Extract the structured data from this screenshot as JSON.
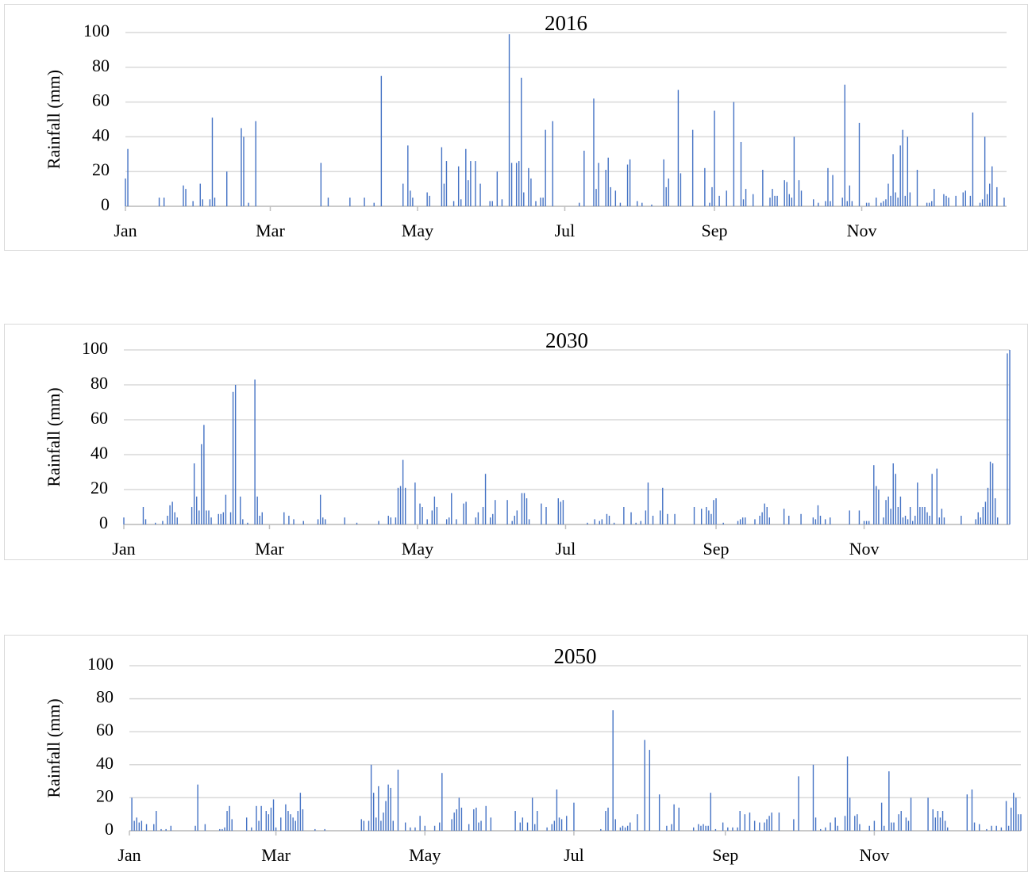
{
  "chart_data": [
    {
      "type": "bar",
      "title": "2016",
      "y_label": "Rainfall (mm)",
      "color": "#4472c4",
      "grid": true,
      "xlim": [
        1,
        366
      ],
      "xticks": [
        {
          "value": 1,
          "label": "Jan"
        },
        {
          "value": 61,
          "label": "Mar"
        },
        {
          "value": 122,
          "label": "May"
        },
        {
          "value": 183,
          "label": "Jul"
        },
        {
          "value": 245,
          "label": "Sep"
        },
        {
          "value": 306,
          "label": "Nov"
        }
      ],
      "ylim": [
        0,
        100
      ],
      "yticks": [
        0,
        20,
        40,
        60,
        80,
        100
      ],
      "x": [
        1,
        2,
        15,
        17,
        25,
        26,
        29,
        32,
        33,
        36,
        37,
        38,
        43,
        49,
        50,
        52,
        55,
        82,
        85,
        94,
        100,
        104,
        107,
        116,
        118,
        119,
        120,
        126,
        127,
        132,
        133,
        134,
        137,
        139,
        140,
        142,
        143,
        144,
        146,
        148,
        152,
        153,
        155,
        157,
        160,
        161,
        163,
        164,
        165,
        166,
        168,
        169,
        171,
        173,
        174,
        175,
        178,
        189,
        191,
        195,
        196,
        197,
        200,
        201,
        202,
        204,
        206,
        209,
        210,
        213,
        215,
        219,
        224,
        225,
        226,
        230,
        231,
        236,
        241,
        243,
        244,
        245,
        247,
        250,
        253,
        256,
        257,
        258,
        261,
        265,
        268,
        269,
        270,
        271,
        274,
        275,
        276,
        277,
        278,
        280,
        281,
        286,
        288,
        291,
        292,
        293,
        294,
        298,
        299,
        300,
        301,
        302,
        305,
        308,
        309,
        312,
        314,
        315,
        316,
        317,
        318,
        319,
        320,
        321,
        322,
        323,
        324,
        325,
        326,
        329,
        333,
        334,
        335,
        336,
        340,
        341,
        342,
        345,
        348,
        349,
        351,
        352,
        355,
        356,
        357,
        358,
        359,
        360,
        362,
        365
      ],
      "values": [
        16,
        33,
        5,
        5,
        12,
        10,
        3,
        13,
        4,
        4,
        51,
        5,
        20,
        45,
        40,
        2,
        49,
        25,
        5,
        5,
        5,
        2,
        75,
        13,
        35,
        9,
        5,
        8,
        6,
        34,
        13,
        26,
        3,
        23,
        4,
        33,
        15,
        26,
        26,
        13,
        3,
        3,
        20,
        4,
        99,
        25,
        25,
        26,
        74,
        8,
        22,
        16,
        3,
        5,
        5,
        44,
        49,
        2,
        32,
        62,
        10,
        25,
        21,
        28,
        11,
        9,
        2,
        24,
        27,
        3,
        2,
        1,
        27,
        11,
        16,
        67,
        19,
        44,
        22,
        2,
        11,
        55,
        6,
        9,
        60,
        37,
        4,
        10,
        7,
        21,
        5,
        10,
        6,
        6,
        15,
        14,
        7,
        5,
        40,
        15,
        9,
        4,
        2,
        3,
        22,
        3,
        18,
        5,
        70,
        3,
        12,
        3,
        48,
        2,
        2,
        5,
        2,
        3,
        4,
        13,
        6,
        30,
        8,
        5,
        35,
        44,
        6,
        40,
        8,
        21,
        2,
        2,
        3,
        10,
        7,
        6,
        5,
        6,
        8,
        9,
        6,
        54,
        2,
        4,
        40,
        7,
        13,
        23,
        11,
        5
      ]
    },
    {
      "type": "bar",
      "title": "2030",
      "y_label": "Rainfall (mm)",
      "color": "#4472c4",
      "grid": true,
      "xlim": [
        1,
        366
      ],
      "xticks": [
        {
          "value": 1,
          "label": "Jan"
        },
        {
          "value": 61,
          "label": "Mar"
        },
        {
          "value": 122,
          "label": "May"
        },
        {
          "value": 183,
          "label": "Jul"
        },
        {
          "value": 245,
          "label": "Sep"
        },
        {
          "value": 306,
          "label": "Nov"
        }
      ],
      "ylim": [
        0,
        100
      ],
      "yticks": [
        0,
        20,
        40,
        60,
        80,
        100
      ],
      "x": [
        1,
        9,
        10,
        14,
        17,
        19,
        20,
        21,
        22,
        23,
        29,
        30,
        31,
        32,
        33,
        34,
        35,
        36,
        37,
        40,
        41,
        42,
        43,
        45,
        46,
        47,
        49,
        50,
        52,
        55,
        56,
        57,
        58,
        67,
        69,
        71,
        75,
        81,
        82,
        83,
        84,
        92,
        97,
        106,
        110,
        111,
        113,
        114,
        115,
        116,
        117,
        121,
        123,
        124,
        126,
        128,
        129,
        130,
        134,
        135,
        136,
        138,
        141,
        142,
        146,
        147,
        149,
        150,
        152,
        153,
        154,
        159,
        161,
        162,
        163,
        165,
        166,
        167,
        168,
        173,
        175,
        180,
        181,
        182,
        192,
        195,
        197,
        198,
        200,
        201,
        203,
        207,
        210,
        212,
        214,
        216,
        217,
        219,
        222,
        223,
        225,
        228,
        236,
        239,
        241,
        242,
        243,
        244,
        245,
        248,
        254,
        255,
        256,
        257,
        261,
        263,
        264,
        265,
        266,
        267,
        273,
        275,
        280,
        285,
        286,
        287,
        288,
        290,
        292,
        300,
        304,
        306,
        307,
        308,
        310,
        311,
        312,
        314,
        315,
        316,
        317,
        318,
        319,
        320,
        321,
        322,
        323,
        324,
        325,
        326,
        327,
        328,
        329,
        330,
        331,
        332,
        333,
        334,
        336,
        337,
        338,
        339,
        346,
        352,
        353,
        354,
        355,
        356,
        357,
        358,
        359,
        360,
        361,
        365,
        366
      ],
      "values": [
        4,
        10,
        3,
        1,
        2,
        5,
        11,
        13,
        7,
        4,
        10,
        35,
        16,
        8,
        46,
        57,
        8,
        8,
        4,
        6,
        6,
        7,
        17,
        7,
        76,
        80,
        16,
        3,
        1,
        83,
        16,
        5,
        7,
        7,
        5,
        3,
        2,
        3,
        17,
        4,
        3,
        4,
        1,
        2,
        5,
        4,
        4,
        21,
        22,
        37,
        21,
        24,
        12,
        10,
        3,
        8,
        16,
        10,
        3,
        4,
        18,
        3,
        12,
        13,
        4,
        7,
        10,
        29,
        4,
        6,
        14,
        14,
        2,
        5,
        8,
        18,
        18,
        15,
        3,
        12,
        10,
        15,
        13,
        14,
        1,
        3,
        2,
        3,
        6,
        5,
        1,
        10,
        7,
        1,
        2,
        8,
        24,
        5,
        8,
        21,
        6,
        6,
        10,
        9,
        10,
        8,
        6,
        14,
        15,
        1,
        2,
        3,
        4,
        4,
        3,
        5,
        7,
        12,
        10,
        4,
        9,
        5,
        6,
        4,
        3,
        11,
        5,
        3,
        4,
        8,
        8,
        2,
        2,
        2,
        34,
        22,
        20,
        4,
        14,
        16,
        9,
        35,
        29,
        10,
        16,
        4,
        5,
        3,
        10,
        2,
        5,
        24,
        10,
        10,
        10,
        7,
        5,
        29,
        32,
        4,
        9,
        4,
        5,
        3,
        7,
        4,
        10,
        13,
        21,
        36,
        35,
        15,
        4,
        98,
        100
      ]
    },
    {
      "type": "bar",
      "title": "2050",
      "y_label": "Rainfall (mm)",
      "color": "#4472c4",
      "grid": true,
      "xlim": [
        1,
        366
      ],
      "xticks": [
        {
          "value": 1,
          "label": "Jan"
        },
        {
          "value": 61,
          "label": "Mar"
        },
        {
          "value": 122,
          "label": "May"
        },
        {
          "value": 183,
          "label": "Jul"
        },
        {
          "value": 245,
          "label": "Sep"
        },
        {
          "value": 306,
          "label": "Nov"
        }
      ],
      "ylim": [
        0,
        100
      ],
      "yticks": [
        0,
        20,
        40,
        60,
        80,
        100
      ],
      "x": [
        2,
        3,
        4,
        5,
        6,
        8,
        11,
        12,
        14,
        16,
        18,
        28,
        29,
        32,
        38,
        39,
        40,
        41,
        42,
        43,
        49,
        51,
        53,
        54,
        55,
        57,
        58,
        59,
        60,
        61,
        63,
        65,
        66,
        67,
        68,
        69,
        70,
        71,
        72,
        77,
        81,
        96,
        97,
        99,
        100,
        101,
        102,
        103,
        104,
        105,
        106,
        107,
        108,
        109,
        111,
        114,
        116,
        118,
        120,
        122,
        126,
        128,
        129,
        133,
        134,
        135,
        136,
        137,
        140,
        142,
        143,
        144,
        145,
        147,
        149,
        159,
        161,
        162,
        164,
        166,
        167,
        168,
        172,
        174,
        175,
        176,
        177,
        178,
        180,
        183,
        194,
        196,
        197,
        199,
        200,
        202,
        203,
        204,
        205,
        206,
        209,
        212,
        214,
        218,
        221,
        223,
        224,
        226,
        232,
        234,
        235,
        236,
        237,
        238,
        239,
        241,
        244,
        246,
        248,
        250,
        251,
        253,
        255,
        257,
        259,
        261,
        262,
        263,
        264,
        267,
        273,
        275,
        281,
        282,
        284,
        286,
        288,
        290,
        291,
        294,
        295,
        296,
        298,
        299,
        300,
        304,
        306,
        309,
        310,
        312,
        313,
        314,
        316,
        317,
        319,
        320,
        321,
        328,
        330,
        331,
        332,
        333,
        334,
        335,
        336,
        344,
        346,
        347,
        349,
        352,
        354,
        356,
        358,
        360,
        361,
        362,
        363,
        364,
        365,
        366
      ],
      "values": [
        20,
        6,
        8,
        5,
        6,
        4,
        4,
        12,
        1,
        1,
        3,
        3,
        28,
        4,
        1,
        1,
        2,
        12,
        15,
        7,
        8,
        2,
        15,
        6,
        15,
        12,
        10,
        14,
        19,
        2,
        8,
        16,
        12,
        10,
        8,
        6,
        12,
        23,
        13,
        1,
        1,
        7,
        6,
        6,
        40,
        23,
        8,
        27,
        6,
        11,
        18,
        28,
        26,
        6,
        37,
        5,
        2,
        2,
        9,
        3,
        3,
        5,
        35,
        7,
        11,
        13,
        20,
        14,
        4,
        13,
        14,
        5,
        6,
        15,
        8,
        12,
        5,
        8,
        5,
        20,
        4,
        12,
        2,
        4,
        6,
        25,
        8,
        7,
        9,
        17,
        1,
        12,
        14,
        73,
        7,
        2,
        3,
        2,
        3,
        5,
        10,
        55,
        49,
        22,
        3,
        4,
        16,
        14,
        2,
        4,
        3,
        4,
        3,
        3,
        23,
        1,
        5,
        2,
        2,
        2,
        12,
        10,
        11,
        6,
        5,
        5,
        7,
        9,
        11,
        11,
        7,
        33,
        40,
        8,
        1,
        2,
        5,
        8,
        3,
        9,
        45,
        20,
        9,
        10,
        4,
        3,
        6,
        17,
        3,
        36,
        5,
        5,
        10,
        12,
        8,
        6,
        20,
        20,
        13,
        8,
        12,
        8,
        12,
        6,
        2,
        22,
        25,
        5,
        4,
        1,
        3,
        3,
        2,
        18,
        3,
        14,
        23,
        20,
        10,
        10
      ]
    }
  ]
}
